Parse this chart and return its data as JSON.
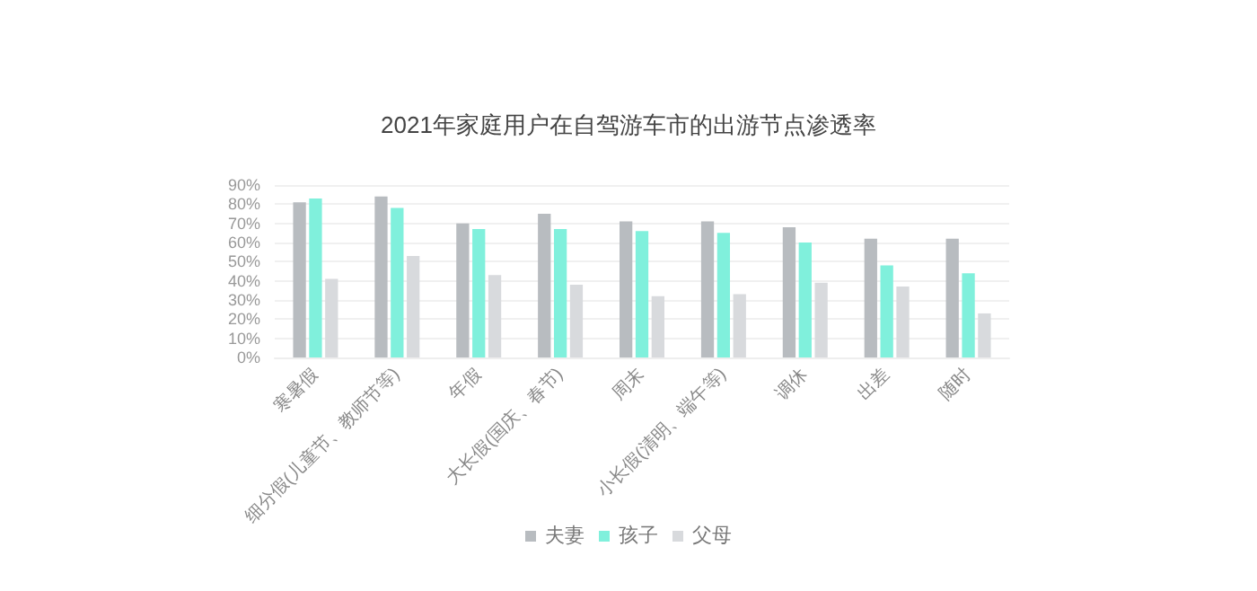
{
  "chart_data": {
    "type": "bar",
    "title": "2021年家庭用户在自驾游车市的出游节点渗透率",
    "categories": [
      "寒暑假",
      "细分假(儿童节、教师节等)",
      "年假",
      "大长假(国庆、春节)",
      "周末",
      "小长假(清明、端午等)",
      "调休",
      "出差",
      "随时"
    ],
    "series": [
      {
        "name": "夫妻",
        "color": "#b8bcc0",
        "values": [
          81,
          84,
          70,
          75,
          71,
          71,
          68,
          62,
          62
        ]
      },
      {
        "name": "孩子",
        "color": "#80f0dc",
        "values": [
          83,
          78,
          67,
          67,
          66,
          65,
          60,
          48,
          44
        ]
      },
      {
        "name": "父母",
        "color": "#d8dadd",
        "values": [
          41,
          53,
          43,
          38,
          32,
          33,
          39,
          37,
          23
        ]
      }
    ],
    "ylim": [
      0,
      90
    ],
    "yticks": [
      {
        "value": 0,
        "label": "0%"
      },
      {
        "value": 10,
        "label": "10%"
      },
      {
        "value": 20,
        "label": "20%"
      },
      {
        "value": 30,
        "label": "30%"
      },
      {
        "value": 40,
        "label": "40%"
      },
      {
        "value": 50,
        "label": "50%"
      },
      {
        "value": 60,
        "label": "60%"
      },
      {
        "value": 70,
        "label": "70%"
      },
      {
        "value": 80,
        "label": "80%"
      },
      {
        "value": 90,
        "label": "90%"
      }
    ],
    "grid": "y",
    "legend": "bottom"
  }
}
